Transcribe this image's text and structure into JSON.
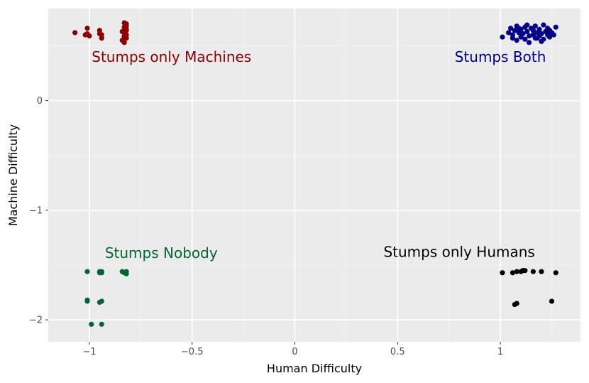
{
  "chart_data": {
    "type": "scatter",
    "title": "",
    "xlabel": "Human Difficulty",
    "ylabel": "Machine Difficulty",
    "xlim": [
      -1.2,
      1.39
    ],
    "ylim": [
      -2.2,
      0.84
    ],
    "x_ticks": [
      -1,
      -0.5,
      0,
      0.5,
      1
    ],
    "x_tick_labels": [
      "−1",
      "−0.5",
      "0",
      "0.5",
      "1"
    ],
    "y_ticks": [
      -2,
      -1,
      0
    ],
    "y_tick_labels": [
      "−2",
      "−1",
      "0"
    ],
    "grid": true,
    "background": "#ebebeb",
    "annotations": [
      {
        "text": "Stumps only Machines",
        "x": -0.6,
        "y": 0.4,
        "color": "#8b0000"
      },
      {
        "text": "Stumps Both",
        "x": 1.0,
        "y": 0.4,
        "color": "#00008b"
      },
      {
        "text": "Stumps Nobody",
        "x": -0.65,
        "y": -1.39,
        "color": "#006633"
      },
      {
        "text": "Stumps only Humans",
        "x": 0.8,
        "y": -1.38,
        "color": "#000000"
      }
    ],
    "series": [
      {
        "color": "#8b0000",
        "points": [
          [
            -1.07,
            0.62
          ],
          [
            -1.02,
            0.6
          ],
          [
            -1.01,
            0.66
          ],
          [
            -1.0,
            0.59
          ],
          [
            -1.01,
            0.61
          ],
          [
            -0.95,
            0.64
          ],
          [
            -0.94,
            0.6
          ],
          [
            -0.95,
            0.61
          ],
          [
            -0.94,
            0.57
          ],
          [
            -0.84,
            0.55
          ],
          [
            -0.83,
            0.58
          ],
          [
            -0.82,
            0.6
          ],
          [
            -0.83,
            0.62
          ],
          [
            -0.82,
            0.64
          ],
          [
            -0.83,
            0.67
          ],
          [
            -0.82,
            0.7
          ],
          [
            -0.83,
            0.71
          ],
          [
            -0.82,
            0.68
          ],
          [
            -0.83,
            0.53
          ],
          [
            -0.82,
            0.57
          ],
          [
            -0.84,
            0.63
          ],
          [
            -0.82,
            0.65
          ],
          [
            -0.83,
            0.59
          ]
        ]
      },
      {
        "color": "#00008b",
        "points": [
          [
            1.01,
            0.58
          ],
          [
            1.04,
            0.62
          ],
          [
            1.05,
            0.66
          ],
          [
            1.06,
            0.6
          ],
          [
            1.07,
            0.64
          ],
          [
            1.08,
            0.55
          ],
          [
            1.08,
            0.68
          ],
          [
            1.09,
            0.62
          ],
          [
            1.1,
            0.58
          ],
          [
            1.1,
            0.65
          ],
          [
            1.11,
            0.61
          ],
          [
            1.12,
            0.56
          ],
          [
            1.12,
            0.67
          ],
          [
            1.13,
            0.63
          ],
          [
            1.14,
            0.59
          ],
          [
            1.14,
            0.53
          ],
          [
            1.15,
            0.66
          ],
          [
            1.16,
            0.6
          ],
          [
            1.16,
            0.64
          ],
          [
            1.17,
            0.57
          ],
          [
            1.17,
            0.68
          ],
          [
            1.18,
            0.62
          ],
          [
            1.19,
            0.65
          ],
          [
            1.19,
            0.59
          ],
          [
            1.2,
            0.61
          ],
          [
            1.21,
            0.69
          ],
          [
            1.21,
            0.56
          ],
          [
            1.22,
            0.63
          ],
          [
            1.23,
            0.6
          ],
          [
            1.23,
            0.66
          ],
          [
            1.24,
            0.58
          ],
          [
            1.25,
            0.62
          ],
          [
            1.26,
            0.6
          ],
          [
            1.27,
            0.67
          ],
          [
            1.06,
            0.57
          ],
          [
            1.13,
            0.69
          ],
          [
            1.2,
            0.54
          ],
          [
            1.09,
            0.66
          ],
          [
            1.18,
            0.57
          ],
          [
            1.24,
            0.64
          ]
        ]
      },
      {
        "color": "#006633",
        "points": [
          [
            -1.01,
            -1.56
          ],
          [
            -1.01,
            -1.82
          ],
          [
            -1.01,
            -1.83
          ],
          [
            -0.99,
            -2.04
          ],
          [
            -0.95,
            -1.56
          ],
          [
            -0.95,
            -1.57
          ],
          [
            -0.94,
            -1.56
          ],
          [
            -0.94,
            -1.57
          ],
          [
            -0.94,
            -1.83
          ],
          [
            -0.95,
            -1.84
          ],
          [
            -0.94,
            -2.04
          ],
          [
            -0.84,
            -1.56
          ],
          [
            -0.83,
            -1.57
          ],
          [
            -0.82,
            -1.56
          ],
          [
            -0.82,
            -1.58
          ]
        ]
      },
      {
        "color": "#000000",
        "points": [
          [
            1.01,
            -1.57
          ],
          [
            1.06,
            -1.57
          ],
          [
            1.08,
            -1.56
          ],
          [
            1.1,
            -1.56
          ],
          [
            1.11,
            -1.55
          ],
          [
            1.12,
            -1.55
          ],
          [
            1.16,
            -1.56
          ],
          [
            1.2,
            -1.56
          ],
          [
            1.27,
            -1.57
          ],
          [
            1.07,
            -1.86
          ],
          [
            1.08,
            -1.85
          ],
          [
            1.25,
            -1.83
          ]
        ]
      }
    ]
  }
}
